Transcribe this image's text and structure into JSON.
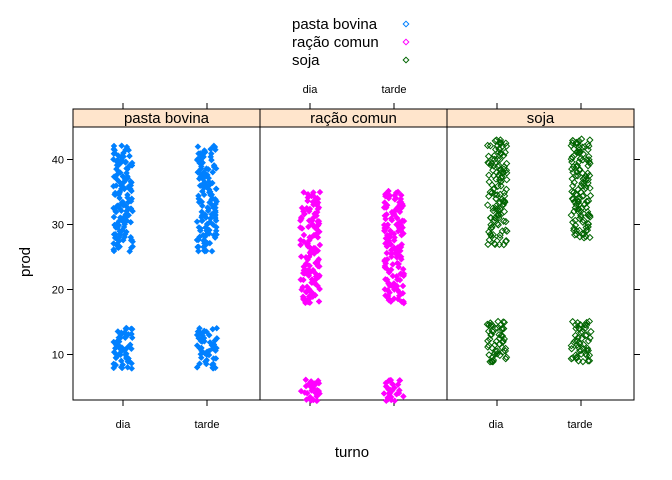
{
  "chart_data": {
    "type": "scatter",
    "title": "",
    "xlabel": "turno",
    "ylabel": "prod",
    "ylim": [
      3,
      45
    ],
    "yticks": [
      10,
      20,
      30,
      40
    ],
    "categories": [
      "dia",
      "tarde"
    ],
    "panels": [
      "pasta bovina",
      "ração comun",
      "soja"
    ],
    "legend": {
      "position": "top",
      "entries": [
        "pasta bovina",
        "ração comun",
        "soja"
      ]
    },
    "series": [
      {
        "name": "pasta bovina",
        "color": "#0080ff",
        "marker": "filled-diamond",
        "clusters": [
          {
            "x": "dia",
            "yrange": [
              26,
              42
            ]
          },
          {
            "x": "dia",
            "yrange": [
              8,
              14
            ]
          },
          {
            "x": "tarde",
            "yrange": [
              26,
              42
            ]
          },
          {
            "x": "tarde",
            "yrange": [
              8,
              14
            ]
          }
        ]
      },
      {
        "name": "ração comun",
        "color": "#ff00ff",
        "marker": "filled-diamond",
        "clusters": [
          {
            "x": "dia",
            "yrange": [
              18,
              35
            ]
          },
          {
            "x": "dia",
            "yrange": [
              3,
              6
            ]
          },
          {
            "x": "tarde",
            "yrange": [
              18,
              35
            ]
          },
          {
            "x": "tarde",
            "yrange": [
              3,
              6
            ]
          }
        ]
      },
      {
        "name": "soja",
        "color": "#006400",
        "marker": "open-diamond",
        "clusters": [
          {
            "x": "dia",
            "yrange": [
              27,
              43
            ]
          },
          {
            "x": "dia",
            "yrange": [
              9,
              15
            ]
          },
          {
            "x": "tarde",
            "yrange": [
              28,
              43
            ]
          },
          {
            "x": "tarde",
            "yrange": [
              9,
              15
            ]
          }
        ]
      }
    ]
  }
}
